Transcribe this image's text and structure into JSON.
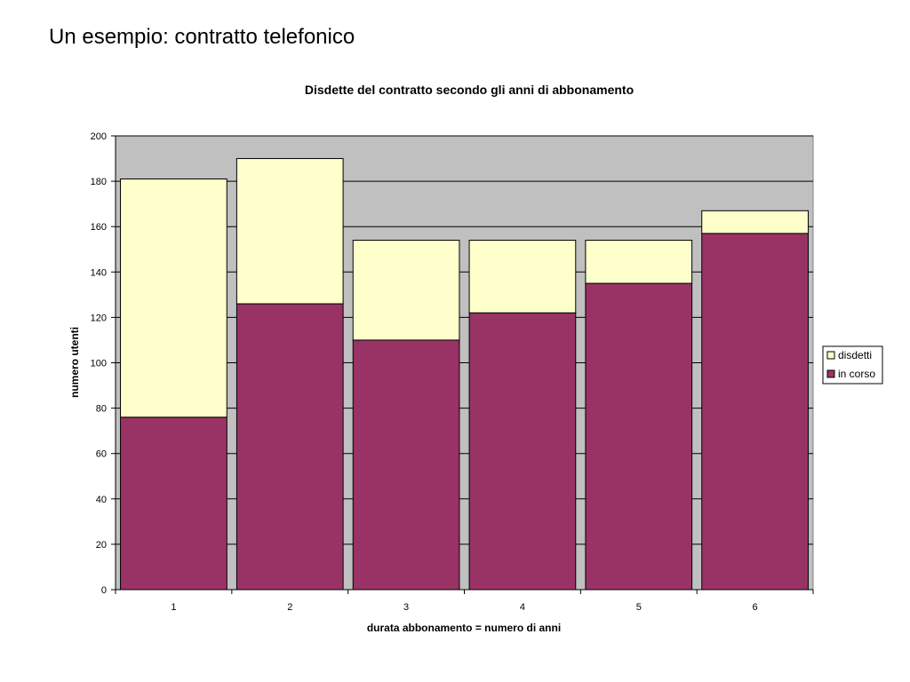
{
  "slide": {
    "title": "Un esempio: contratto telefonico"
  },
  "colors": {
    "plot_background": "#c0c0c0",
    "disdetti": "#ffffcc",
    "in_corso": "#993366",
    "gridline": "#000000"
  },
  "chart_data": {
    "type": "bar",
    "stacked": true,
    "title": "Disdette del contratto secondo gli anni di abbonamento",
    "xlabel": "durata abbonamento = numero di anni",
    "ylabel": "numero utenti",
    "categories": [
      "1",
      "2",
      "3",
      "4",
      "5",
      "6"
    ],
    "series": [
      {
        "name": "in corso",
        "values": [
          76,
          126,
          110,
          122,
          135,
          157
        ]
      },
      {
        "name": "disdetti",
        "values": [
          105,
          64,
          44,
          32,
          19,
          10
        ]
      }
    ],
    "ylim": [
      0,
      200
    ],
    "yticks": [
      "0",
      "20",
      "40",
      "60",
      "80",
      "100",
      "120",
      "140",
      "160",
      "180",
      "200"
    ],
    "grid": true,
    "legend_position": "right",
    "legend": [
      "disdetti",
      "in corso"
    ]
  }
}
